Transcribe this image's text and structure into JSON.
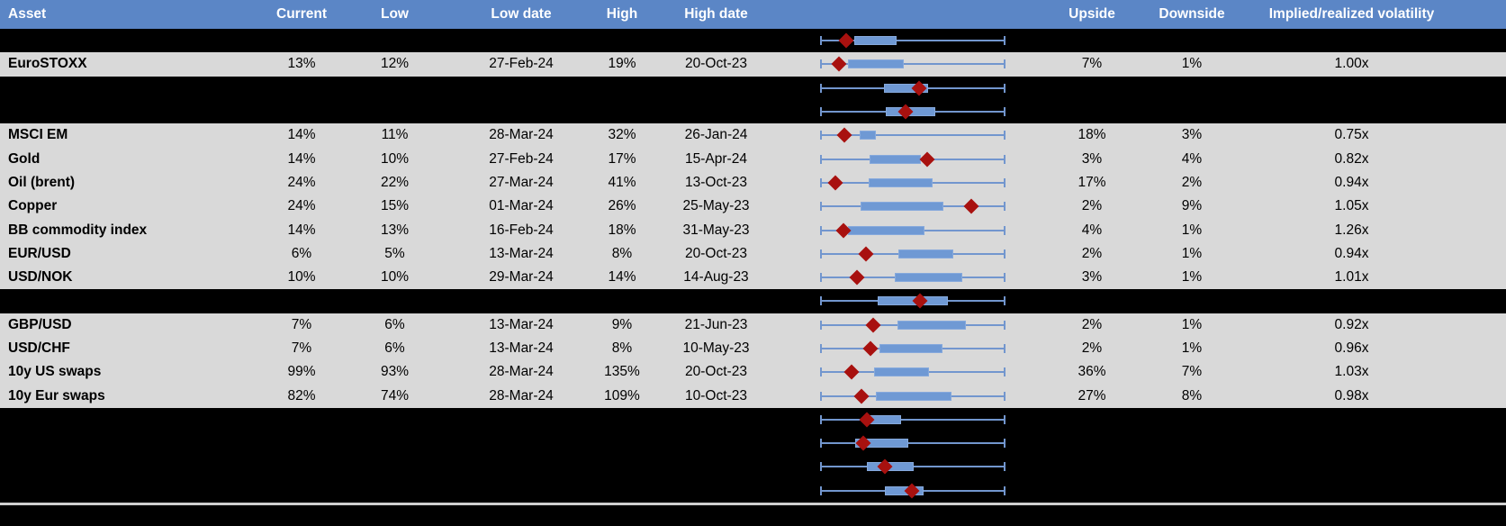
{
  "colors": {
    "header_bg": "#5b86c6",
    "header_text": "#ffffff",
    "data_row_bg": "#d9d9d9",
    "spacer_row_bg": "#000000",
    "body_text": "#000000",
    "whisker_blue": "#7296ce",
    "box_fill_blue": "#6f99d4",
    "box_border_blue": "#86a9dc",
    "marker_dark_red": "#a8110f",
    "bottom_rule_gray": "#cfcfcf"
  },
  "chart_data": {
    "type": "table",
    "columns": [
      "Asset",
      "Current",
      "Low",
      "Low date",
      "High",
      "High date",
      "",
      "Upside",
      "Downside",
      "Implied/realized volatility"
    ],
    "embedded_plot": {
      "type": "boxplot",
      "orientation": "horizontal",
      "whisker_span_frac": [
        0,
        1
      ],
      "note_fracs": "box and marker positions are fractions 0-1 of the whisker span"
    },
    "rows": [
      {
        "spacer": true,
        "asset": "",
        "current": "",
        "low": "",
        "low_date": "",
        "high": "",
        "high_date": "",
        "upside": "",
        "downside": "",
        "implied": "",
        "plot": {
          "box": [
            0.18,
            0.41
          ],
          "marker": 0.135
        }
      },
      {
        "spacer": false,
        "asset": "EuroSTOXX",
        "current": "13%",
        "low": "12%",
        "low_date": "27-Feb-24",
        "high": "19%",
        "high_date": "20-Oct-23",
        "upside": "7%",
        "downside": "1%",
        "implied": "1.00x",
        "plot": {
          "box": [
            0.145,
            0.45
          ],
          "marker": 0.1
        }
      },
      {
        "spacer": true,
        "asset": "",
        "current": "",
        "low": "",
        "low_date": "",
        "high": "",
        "high_date": "",
        "upside": "",
        "downside": "",
        "implied": "",
        "plot": {
          "box": [
            0.345,
            0.585
          ],
          "marker": 0.535
        }
      },
      {
        "spacer": true,
        "asset": "",
        "current": "",
        "low": "",
        "low_date": "",
        "high": "",
        "high_date": "",
        "upside": "",
        "downside": "",
        "implied": "",
        "plot": {
          "box": [
            0.355,
            0.625
          ],
          "marker": 0.46
        }
      },
      {
        "spacer": false,
        "asset": "MSCI EM",
        "current": "14%",
        "low": "11%",
        "low_date": "28-Mar-24",
        "high": "32%",
        "high_date": "26-Jan-24",
        "upside": "18%",
        "downside": "3%",
        "implied": "0.75x",
        "plot": {
          "box": [
            0.21,
            0.3
          ],
          "marker": 0.125
        }
      },
      {
        "spacer": false,
        "asset": "Gold",
        "current": "14%",
        "low": "10%",
        "low_date": "27-Feb-24",
        "high": "17%",
        "high_date": "15-Apr-24",
        "upside": "3%",
        "downside": "4%",
        "implied": "0.82x",
        "plot": {
          "box": [
            0.265,
            0.545
          ],
          "marker": 0.58
        }
      },
      {
        "spacer": false,
        "asset": "Oil (brent)",
        "current": "24%",
        "low": "22%",
        "low_date": "27-Mar-24",
        "high": "41%",
        "high_date": "13-Oct-23",
        "upside": "17%",
        "downside": "2%",
        "implied": "0.94x",
        "plot": {
          "box": [
            0.26,
            0.61
          ],
          "marker": 0.08
        }
      },
      {
        "spacer": false,
        "asset": "Copper",
        "current": "24%",
        "low": "15%",
        "low_date": "01-Mar-24",
        "high": "26%",
        "high_date": "25-May-23",
        "upside": "2%",
        "downside": "9%",
        "implied": "1.05x",
        "plot": {
          "box": [
            0.215,
            0.665
          ],
          "marker": 0.82
        }
      },
      {
        "spacer": false,
        "asset": "BB commodity index",
        "current": "14%",
        "low": "13%",
        "low_date": "16-Feb-24",
        "high": "18%",
        "high_date": "31-May-23",
        "upside": "4%",
        "downside": "1%",
        "implied": "1.26x",
        "plot": {
          "box": [
            0.145,
            0.565
          ],
          "marker": 0.12
        }
      },
      {
        "spacer": false,
        "asset": "EUR/USD",
        "current": "6%",
        "low": "5%",
        "low_date": "13-Mar-24",
        "high": "8%",
        "high_date": "20-Oct-23",
        "upside": "2%",
        "downside": "1%",
        "implied": "0.94x",
        "plot": {
          "box": [
            0.42,
            0.72
          ],
          "marker": 0.245
        }
      },
      {
        "spacer": false,
        "asset": "USD/NOK",
        "current": "10%",
        "low": "10%",
        "low_date": "29-Mar-24",
        "high": "14%",
        "high_date": "14-Aug-23",
        "upside": "3%",
        "downside": "1%",
        "implied": "1.01x",
        "plot": {
          "box": [
            0.4,
            0.77
          ],
          "marker": 0.195
        }
      },
      {
        "spacer": true,
        "asset": "",
        "current": "",
        "low": "",
        "low_date": "",
        "high": "",
        "high_date": "",
        "upside": "",
        "downside": "",
        "implied": "",
        "plot": {
          "box": [
            0.31,
            0.69
          ],
          "marker": 0.54
        }
      },
      {
        "spacer": false,
        "asset": "GBP/USD",
        "current": "7%",
        "low": "6%",
        "low_date": "13-Mar-24",
        "high": "9%",
        "high_date": "21-Jun-23",
        "upside": "2%",
        "downside": "1%",
        "implied": "0.92x",
        "plot": {
          "box": [
            0.415,
            0.79
          ],
          "marker": 0.285
        }
      },
      {
        "spacer": false,
        "asset": "USD/CHF",
        "current": "7%",
        "low": "6%",
        "low_date": "13-Mar-24",
        "high": "8%",
        "high_date": "10-May-23",
        "upside": "2%",
        "downside": "1%",
        "implied": "0.96x",
        "plot": {
          "box": [
            0.32,
            0.66
          ],
          "marker": 0.27
        }
      },
      {
        "spacer": false,
        "asset": "10y US swaps",
        "current": "99%",
        "low": "93%",
        "low_date": "28-Mar-24",
        "high": "135%",
        "high_date": "20-Oct-23",
        "upside": "36%",
        "downside": "7%",
        "implied": "1.03x",
        "plot": {
          "box": [
            0.29,
            0.59
          ],
          "marker": 0.165
        }
      },
      {
        "spacer": false,
        "asset": "10y Eur swaps",
        "current": "82%",
        "low": "74%",
        "low_date": "28-Mar-24",
        "high": "109%",
        "high_date": "10-Oct-23",
        "upside": "27%",
        "downside": "8%",
        "implied": "0.98x",
        "plot": {
          "box": [
            0.3,
            0.71
          ],
          "marker": 0.22
        }
      },
      {
        "spacer": true,
        "asset": "",
        "current": "",
        "low": "",
        "low_date": "",
        "high": "",
        "high_date": "",
        "upside": "",
        "downside": "",
        "implied": "",
        "plot": {
          "box": [
            0.26,
            0.435
          ],
          "marker": 0.25
        }
      },
      {
        "spacer": true,
        "asset": "",
        "current": "",
        "low": "",
        "low_date": "",
        "high": "",
        "high_date": "",
        "upside": "",
        "downside": "",
        "implied": "",
        "plot": {
          "box": [
            0.185,
            0.475
          ],
          "marker": 0.23
        }
      },
      {
        "spacer": true,
        "asset": "",
        "current": "",
        "low": "",
        "low_date": "",
        "high": "",
        "high_date": "",
        "upside": "",
        "downside": "",
        "implied": "",
        "plot": {
          "box": [
            0.25,
            0.505
          ],
          "marker": 0.35
        }
      },
      {
        "spacer": true,
        "asset": "",
        "current": "",
        "low": "",
        "low_date": "",
        "high": "",
        "high_date": "",
        "upside": "",
        "downside": "",
        "implied": "",
        "plot": {
          "box": [
            0.35,
            0.56
          ],
          "marker": 0.495
        }
      }
    ]
  }
}
